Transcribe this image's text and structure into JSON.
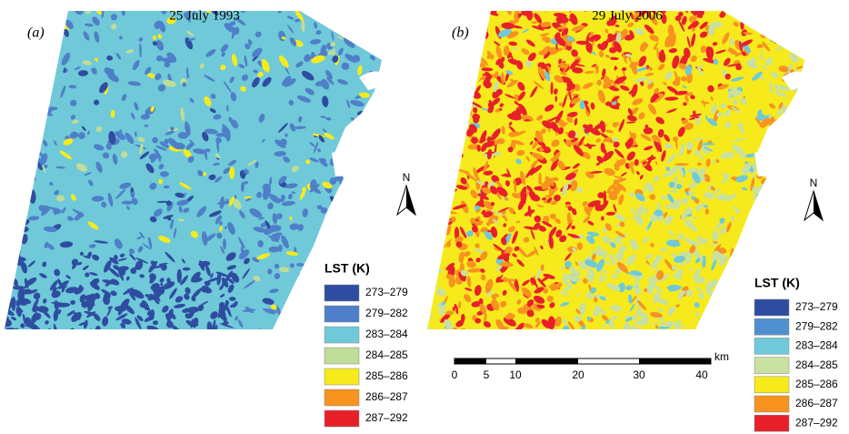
{
  "panels": [
    {
      "label": "(a)",
      "title": "25 July 1993",
      "north": "N",
      "legend": {
        "title": "LST (K)",
        "items": [
          {
            "label": "273–279",
            "color": "#2f4da0"
          },
          {
            "label": "279–282",
            "color": "#4f7fc8"
          },
          {
            "label": "283–284",
            "color": "#6fc9d8"
          },
          {
            "label": "284–285",
            "color": "#bfdc98"
          },
          {
            "label": "285–286",
            "color": "#f6ea1c"
          },
          {
            "label": "286–287",
            "color": "#f7931e"
          },
          {
            "label": "287–292",
            "color": "#e8202a"
          }
        ]
      }
    },
    {
      "label": "(b)",
      "title": "29 July 2006",
      "north": "N",
      "legend": {
        "title": "LST (K)",
        "items": [
          {
            "label": "273–279",
            "color": "#2f4da0"
          },
          {
            "label": "279–282",
            "color": "#4f8fd0"
          },
          {
            "label": "283–284",
            "color": "#6fc9d8"
          },
          {
            "label": "284–285",
            "color": "#c8e0a0"
          },
          {
            "label": "285–286",
            "color": "#f6ea1c"
          },
          {
            "label": "286–287",
            "color": "#f7931e"
          },
          {
            "label": "287–292",
            "color": "#e8202a"
          }
        ]
      }
    }
  ],
  "scale_bar": {
    "ticks": [
      "0",
      "5",
      "10",
      "20",
      "30",
      "40"
    ],
    "unit": "km"
  }
}
